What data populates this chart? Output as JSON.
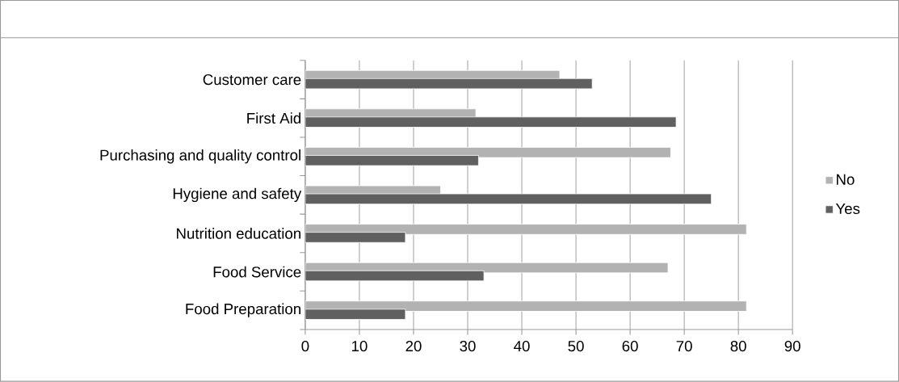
{
  "chart_data": {
    "type": "bar",
    "orientation": "horizontal",
    "categories": [
      "Customer care",
      "First Aid",
      "Purchasing and quality control",
      "Hygiene and safety",
      "Nutrition education",
      "Food Service",
      "Food Preparation"
    ],
    "series": [
      {
        "name": "No",
        "color": "#b2b2b2",
        "values": [
          47,
          31.5,
          67.5,
          25,
          81.5,
          67,
          81.5
        ]
      },
      {
        "name": "Yes",
        "color": "#606060",
        "values": [
          53,
          68.5,
          32,
          75,
          18.5,
          33,
          18.5
        ]
      }
    ],
    "xlim": [
      0,
      90
    ],
    "xticks": [
      0,
      10,
      20,
      30,
      40,
      50,
      60,
      70,
      80,
      90
    ],
    "grid": "x",
    "legend": "right"
  }
}
